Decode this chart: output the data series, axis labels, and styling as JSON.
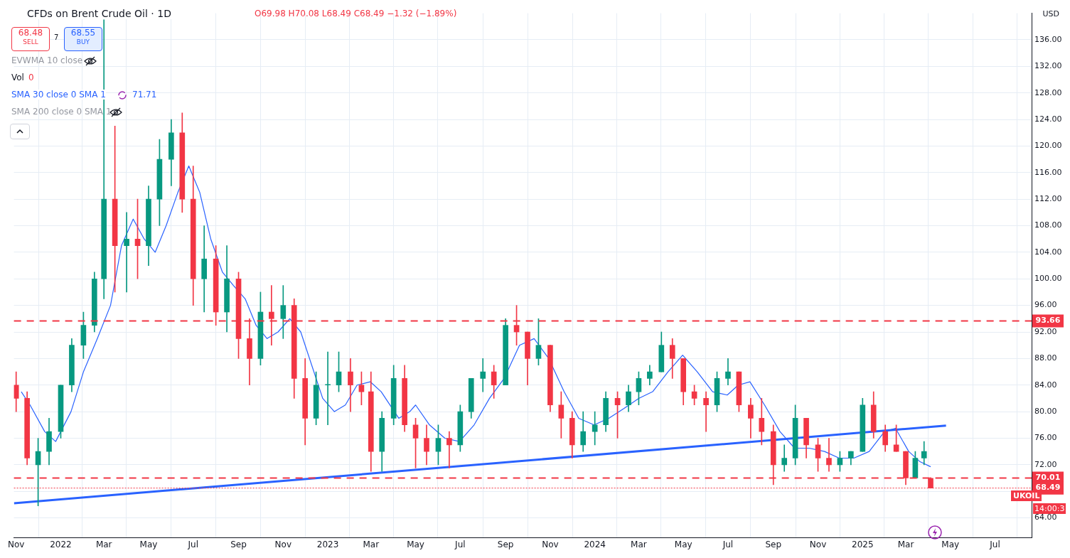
{
  "chart_data": {
    "type": "candlestick",
    "title": "CFDs on Brent Crude Oil · 1D",
    "ylabel": "USD",
    "x": [
      "2021-11-01",
      "2021-11-16",
      "2021-12-01",
      "2021-12-16",
      "2022-01-01",
      "2022-01-16",
      "2022-02-01",
      "2022-02-16",
      "2022-03-01",
      "2022-03-16",
      "2022-04-01",
      "2022-04-16",
      "2022-05-01",
      "2022-05-16",
      "2022-06-01",
      "2022-06-16",
      "2022-07-01",
      "2022-07-16",
      "2022-08-01",
      "2022-08-16",
      "2022-09-01",
      "2022-09-16",
      "2022-10-01",
      "2022-10-16",
      "2022-11-01",
      "2022-11-16",
      "2022-12-01",
      "2022-12-16",
      "2023-01-01",
      "2023-01-16",
      "2023-02-01",
      "2023-02-16",
      "2023-03-01",
      "2023-03-16",
      "2023-04-01",
      "2023-04-16",
      "2023-05-01",
      "2023-05-16",
      "2023-06-01",
      "2023-06-16",
      "2023-07-01",
      "2023-07-16",
      "2023-08-01",
      "2023-08-16",
      "2023-09-01",
      "2023-09-16",
      "2023-10-01",
      "2023-10-16",
      "2023-11-01",
      "2023-11-16",
      "2023-12-01",
      "2023-12-16",
      "2024-01-01",
      "2024-01-16",
      "2024-02-01",
      "2024-02-16",
      "2024-03-01",
      "2024-03-16",
      "2024-04-01",
      "2024-04-16",
      "2024-05-01",
      "2024-05-16",
      "2024-06-01",
      "2024-06-16",
      "2024-07-01",
      "2024-07-16",
      "2024-08-01",
      "2024-08-16",
      "2024-09-01",
      "2024-09-16",
      "2024-10-01",
      "2024-10-16",
      "2024-11-01",
      "2024-11-16",
      "2024-12-01",
      "2024-12-16",
      "2025-01-01",
      "2025-01-16",
      "2025-02-01",
      "2025-02-16",
      "2025-03-01",
      "2025-03-14",
      "2025-03-26",
      "2025-04-04"
    ],
    "ohlc": [
      [
        84,
        86,
        80,
        82
      ],
      [
        82,
        83,
        72,
        73
      ],
      [
        72,
        76,
        65.8,
        74
      ],
      [
        74,
        79,
        72,
        77
      ],
      [
        77,
        84,
        76,
        84
      ],
      [
        84,
        91,
        83,
        90
      ],
      [
        90,
        95,
        88,
        93
      ],
      [
        93,
        101,
        92,
        100
      ],
      [
        100,
        139,
        97,
        112
      ],
      [
        112,
        123,
        98,
        105
      ],
      [
        105,
        110,
        98,
        106
      ],
      [
        106,
        112,
        100,
        105
      ],
      [
        105,
        114,
        102,
        112
      ],
      [
        112,
        121,
        108,
        118
      ],
      [
        118,
        124,
        114,
        122
      ],
      [
        122,
        125,
        110,
        112
      ],
      [
        112,
        117,
        96,
        100
      ],
      [
        100,
        108,
        95,
        103
      ],
      [
        103,
        105,
        93,
        95
      ],
      [
        95,
        105,
        92,
        100
      ],
      [
        100,
        101,
        88,
        91
      ],
      [
        91,
        94,
        84,
        88
      ],
      [
        88,
        98,
        87,
        95
      ],
      [
        95,
        99,
        90,
        94
      ],
      [
        94,
        99,
        91,
        96
      ],
      [
        96,
        97,
        82,
        85
      ],
      [
        85,
        88,
        75,
        79
      ],
      [
        79,
        86,
        78,
        84
      ],
      [
        84,
        89,
        78,
        84
      ],
      [
        84,
        89,
        83,
        86
      ],
      [
        86,
        88,
        80,
        84
      ],
      [
        84,
        86,
        81,
        83
      ],
      [
        83,
        86,
        71,
        74
      ],
      [
        74,
        80,
        71,
        79
      ],
      [
        79,
        87,
        78,
        85
      ],
      [
        85,
        87,
        77,
        78
      ],
      [
        78,
        79,
        71.5,
        76
      ],
      [
        76,
        78,
        72,
        74
      ],
      [
        74,
        78,
        72,
        76
      ],
      [
        76,
        77,
        71.5,
        75
      ],
      [
        75,
        81,
        74,
        80
      ],
      [
        80,
        85,
        79,
        85
      ],
      [
        85,
        88,
        83,
        86
      ],
      [
        86,
        87,
        82,
        84
      ],
      [
        84,
        94,
        84,
        93
      ],
      [
        93,
        96,
        90,
        92
      ],
      [
        92,
        92,
        84,
        88
      ],
      [
        88,
        94,
        87,
        90
      ],
      [
        90,
        90,
        80,
        81
      ],
      [
        81,
        83,
        76,
        79
      ],
      [
        79,
        80,
        73,
        75
      ],
      [
        75,
        80,
        74,
        77
      ],
      [
        77,
        80,
        75,
        78
      ],
      [
        78,
        83,
        77,
        82
      ],
      [
        82,
        83,
        76,
        81
      ],
      [
        81,
        84,
        80,
        83
      ],
      [
        83,
        86,
        81,
        85
      ],
      [
        85,
        87,
        84,
        86
      ],
      [
        86,
        92,
        86,
        90
      ],
      [
        90,
        91,
        85,
        88
      ],
      [
        88,
        88,
        81,
        83
      ],
      [
        83,
        84,
        81,
        82
      ],
      [
        82,
        83,
        77,
        81
      ],
      [
        81,
        86,
        80,
        85
      ],
      [
        85,
        88,
        84,
        86
      ],
      [
        86,
        86,
        80,
        81
      ],
      [
        81,
        82,
        76,
        79
      ],
      [
        79,
        82,
        75,
        77
      ],
      [
        77,
        78,
        69,
        72
      ],
      [
        72,
        75,
        71,
        73
      ],
      [
        73,
        81,
        72,
        79
      ],
      [
        79,
        79,
        73,
        75
      ],
      [
        75,
        76,
        71,
        73
      ],
      [
        73,
        76,
        71,
        72
      ],
      [
        72,
        74,
        71,
        73
      ],
      [
        73,
        74,
        72,
        74
      ],
      [
        74,
        82,
        74,
        81
      ],
      [
        81,
        83,
        76,
        77
      ],
      [
        77,
        78,
        74,
        75
      ],
      [
        75,
        78,
        74,
        74
      ],
      [
        74,
        74,
        69,
        70
      ],
      [
        70,
        74,
        70,
        73
      ],
      [
        73,
        75.5,
        72,
        74
      ],
      [
        69.98,
        70.08,
        68.49,
        68.49
      ]
    ],
    "series": [
      {
        "type": "line",
        "name": "SMA 30 close 0 SMA 1",
        "color": "#2962ff",
        "x": [
          "2021-11-08",
          "2021-11-20",
          "2021-12-10",
          "2021-12-25",
          "2022-01-15",
          "2022-02-01",
          "2022-02-20",
          "2022-03-10",
          "2022-03-25",
          "2022-04-10",
          "2022-04-25",
          "2022-05-10",
          "2022-05-25",
          "2022-06-10",
          "2022-06-25",
          "2022-07-10",
          "2022-07-25",
          "2022-08-10",
          "2022-08-25",
          "2022-09-10",
          "2022-09-25",
          "2022-10-10",
          "2022-10-25",
          "2022-11-10",
          "2022-11-25",
          "2022-12-10",
          "2022-12-25",
          "2023-01-10",
          "2023-01-25",
          "2023-02-10",
          "2023-02-28",
          "2023-03-15",
          "2023-04-08",
          "2023-04-23",
          "2023-05-01",
          "2023-05-20",
          "2023-06-10",
          "2023-06-30",
          "2023-07-20",
          "2023-08-10",
          "2023-08-30",
          "2023-09-20",
          "2023-10-10",
          "2023-10-30",
          "2023-11-20",
          "2023-12-10",
          "2023-12-31",
          "2024-01-20",
          "2024-02-10",
          "2024-03-01",
          "2024-03-20",
          "2024-04-10",
          "2024-04-30",
          "2024-05-20",
          "2024-06-10",
          "2024-06-30",
          "2024-07-15",
          "2024-07-31",
          "2024-08-20",
          "2024-09-10",
          "2024-09-30",
          "2024-10-20",
          "2024-11-10",
          "2024-11-30",
          "2024-12-20",
          "2025-01-10",
          "2025-01-31",
          "2025-02-15",
          "2025-03-05",
          "2025-03-20",
          "2025-04-04"
        ],
        "values": [
          83,
          81,
          77,
          75.5,
          80,
          86,
          91,
          96,
          105,
          109,
          106,
          104,
          108,
          113,
          117,
          113,
          106,
          101,
          99,
          97,
          93,
          91,
          92,
          94,
          92,
          87,
          82,
          80,
          81,
          84,
          84.5,
          83,
          79,
          80,
          81,
          78,
          76,
          75.5,
          78,
          82,
          85,
          90,
          91,
          88,
          83,
          79,
          78,
          79,
          80.5,
          82,
          83,
          86,
          88.5,
          86,
          83,
          82.5,
          84,
          84.5,
          81,
          77,
          74.5,
          74.5,
          74,
          73,
          73,
          74,
          77,
          77.5,
          74,
          72.5,
          71.7
        ]
      },
      {
        "type": "line",
        "color": "#2962ff",
        "x": [
          "2021-10-29",
          "2025-04-25"
        ],
        "values": [
          66.2,
          77.9
        ]
      }
    ],
    "xlim": [
      "2021-10-29",
      "2025-08-20"
    ],
    "xticks": [
      {
        "value": "2021-11-01",
        "label": "Nov"
      },
      {
        "value": "2022-01-01",
        "label": "2022"
      },
      {
        "value": "2022-03-01",
        "label": "Mar"
      },
      {
        "value": "2022-05-01",
        "label": "May"
      },
      {
        "value": "2022-07-01",
        "label": "Jul"
      },
      {
        "value": "2022-09-01",
        "label": "Sep"
      },
      {
        "value": "2022-11-01",
        "label": "Nov"
      },
      {
        "value": "2023-01-01",
        "label": "2023"
      },
      {
        "value": "2023-03-01",
        "label": "Mar"
      },
      {
        "value": "2023-05-01",
        "label": "May"
      },
      {
        "value": "2023-07-01",
        "label": "Jul"
      },
      {
        "value": "2023-09-01",
        "label": "Sep"
      },
      {
        "value": "2023-11-01",
        "label": "Nov"
      },
      {
        "value": "2024-01-01",
        "label": "2024"
      },
      {
        "value": "2024-03-01",
        "label": "Mar"
      },
      {
        "value": "2024-05-01",
        "label": "May"
      },
      {
        "value": "2024-07-01",
        "label": "Jul"
      },
      {
        "value": "2024-09-01",
        "label": "Sep"
      },
      {
        "value": "2024-11-01",
        "label": "Nov"
      },
      {
        "value": "2025-01-01",
        "label": "2025"
      },
      {
        "value": "2025-03-01",
        "label": "Mar"
      },
      {
        "value": "2025-05-01",
        "label": "May"
      },
      {
        "value": "2025-07-01",
        "label": "Jul"
      }
    ],
    "ylim": [
      61,
      140
    ],
    "yticks": [
      {
        "value": 64,
        "label": "64.00"
      },
      {
        "value": 68,
        "label": null
      },
      {
        "value": 72,
        "label": "72.00"
      },
      {
        "value": 76,
        "label": "76.00"
      },
      {
        "value": 80,
        "label": "80.00"
      },
      {
        "value": 84,
        "label": "84.00"
      },
      {
        "value": 88,
        "label": "88.00"
      },
      {
        "value": 92,
        "label": "92.00"
      },
      {
        "value": 96,
        "label": "96.00"
      },
      {
        "value": 100,
        "label": "100.00"
      },
      {
        "value": 104,
        "label": "104.00"
      },
      {
        "value": 108,
        "label": "108.00"
      },
      {
        "value": 112,
        "label": "112.00"
      },
      {
        "value": 116,
        "label": "116.00"
      },
      {
        "value": 120,
        "label": "120.00"
      },
      {
        "value": 124,
        "label": "124.00"
      },
      {
        "value": 128,
        "label": "128.00"
      },
      {
        "value": 132,
        "label": "132.00"
      },
      {
        "value": 136,
        "label": "136.00"
      }
    ],
    "grid": true,
    "ref_lines": [
      {
        "axis": "y",
        "value": 93.66,
        "label": "93.66",
        "color": "#f23645",
        "line_style": "dashed"
      },
      {
        "axis": "y",
        "value": 70.01,
        "label": "70.01",
        "color": "#f23645",
        "line_style": "dashed"
      },
      {
        "axis": "y",
        "value": 68.49,
        "label": "68.49",
        "color": "#f23645",
        "line_style": "dotted"
      }
    ],
    "annotations": [
      "O69.98 H70.08 L68.49 C68.49 −1.32 (−1.89%)",
      "68.48",
      "SELL",
      "68.55",
      "BUY",
      "7",
      "EVWMA 10 close",
      "Vol",
      "0",
      "71.71",
      "SMA 200 close 0 SMA 1",
      "UKOIL",
      "14:00:3"
    ]
  }
}
